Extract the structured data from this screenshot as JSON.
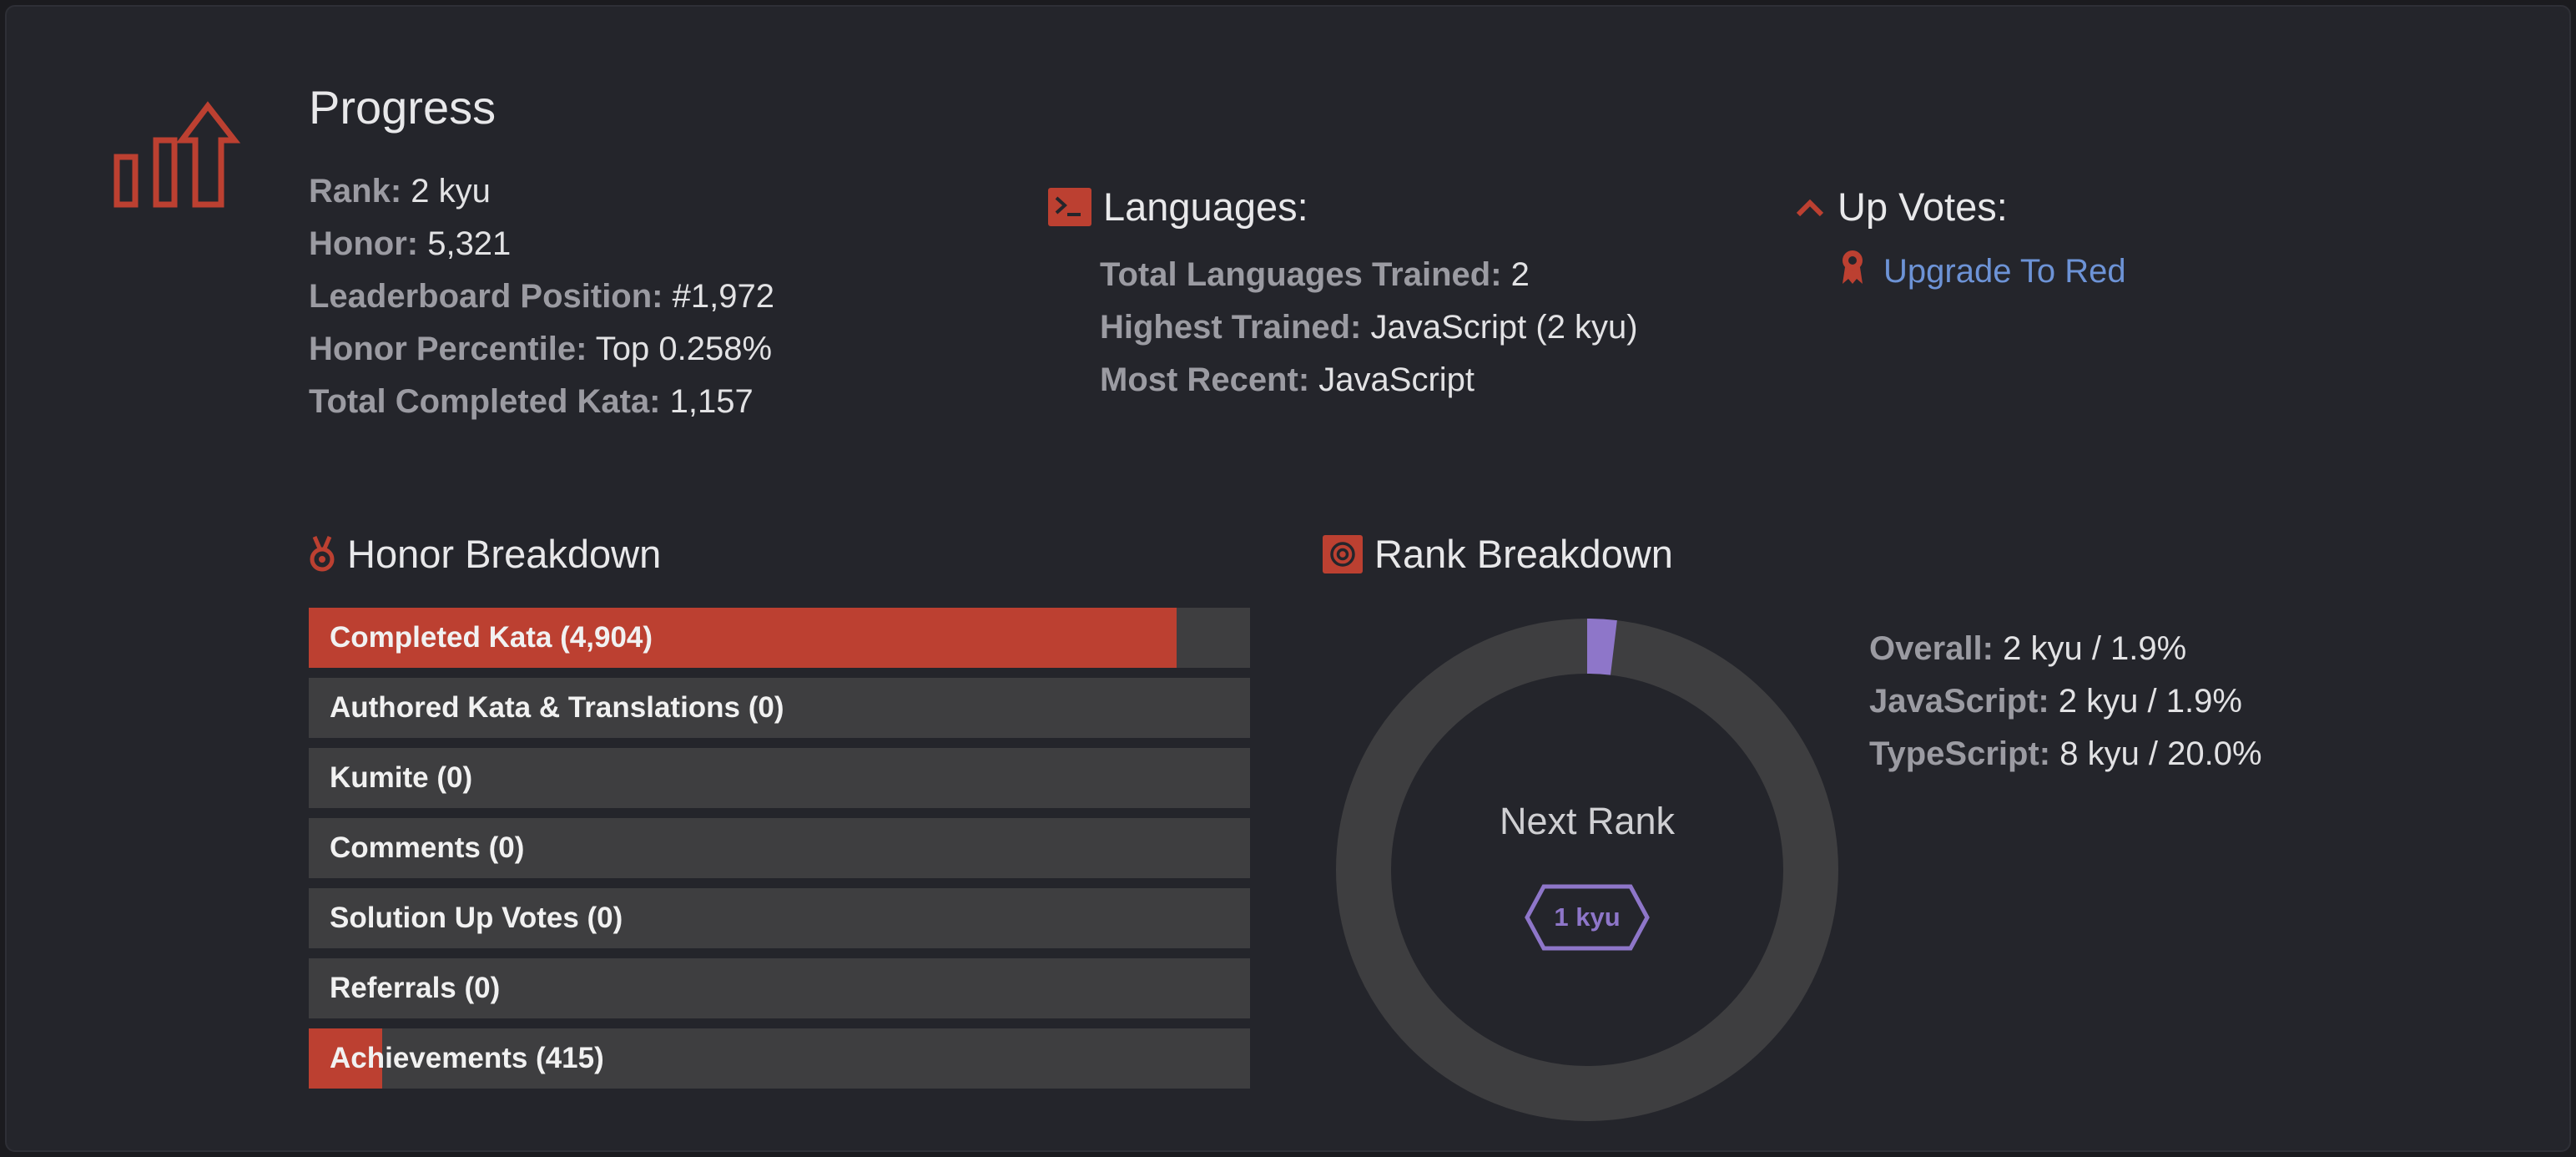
{
  "progress": {
    "title": "Progress",
    "stats": [
      {
        "label": "Rank:",
        "value": "2 kyu"
      },
      {
        "label": "Honor:",
        "value": "5,321"
      },
      {
        "label": "Leaderboard Position:",
        "value": "#1,972"
      },
      {
        "label": "Honor Percentile:",
        "value": "Top 0.258%"
      },
      {
        "label": "Total Completed Kata:",
        "value": "1,157"
      }
    ]
  },
  "languages": {
    "heading": "Languages:",
    "stats": [
      {
        "label": "Total Languages Trained:",
        "value": "2"
      },
      {
        "label": "Highest Trained:",
        "value": "JavaScript (2 kyu)"
      },
      {
        "label": "Most Recent:",
        "value": "JavaScript"
      }
    ]
  },
  "upvotes": {
    "heading": "Up Votes:",
    "upgrade_link": "Upgrade To Red"
  },
  "honor_breakdown": {
    "heading": "Honor Breakdown",
    "items": [
      {
        "label": "Completed Kata (4,904)",
        "fill": 0.922
      },
      {
        "label": "Authored Kata & Translations (0)",
        "fill": 0
      },
      {
        "label": "Kumite (0)",
        "fill": 0
      },
      {
        "label": "Comments (0)",
        "fill": 0
      },
      {
        "label": "Solution Up Votes (0)",
        "fill": 0
      },
      {
        "label": "Referrals (0)",
        "fill": 0
      },
      {
        "label": "Achievements (415)",
        "fill": 0.078
      }
    ]
  },
  "rank_breakdown": {
    "heading": "Rank Breakdown",
    "next_rank_label": "Next Rank",
    "next_rank_badge": "1 kyu",
    "progress_fraction": 0.019,
    "stats": [
      {
        "label": "Overall:",
        "value": "2 kyu / 1.9%"
      },
      {
        "label": "JavaScript:",
        "value": "2 kyu / 1.9%"
      },
      {
        "label": "TypeScript:",
        "value": "8 kyu / 20.0%"
      }
    ]
  },
  "colors": {
    "accent": "#bc4031",
    "rank_purple": "#8e76c9",
    "link": "#6d93d6",
    "track": "#3e3e40"
  },
  "icons": {
    "progress": "bar-chart-up-arrow-icon",
    "languages": "terminal-icon",
    "upvotes": "chevron-up-icon",
    "upgrade": "award-ribbon-icon",
    "honor": "medal-icon",
    "rank": "target-icon"
  }
}
